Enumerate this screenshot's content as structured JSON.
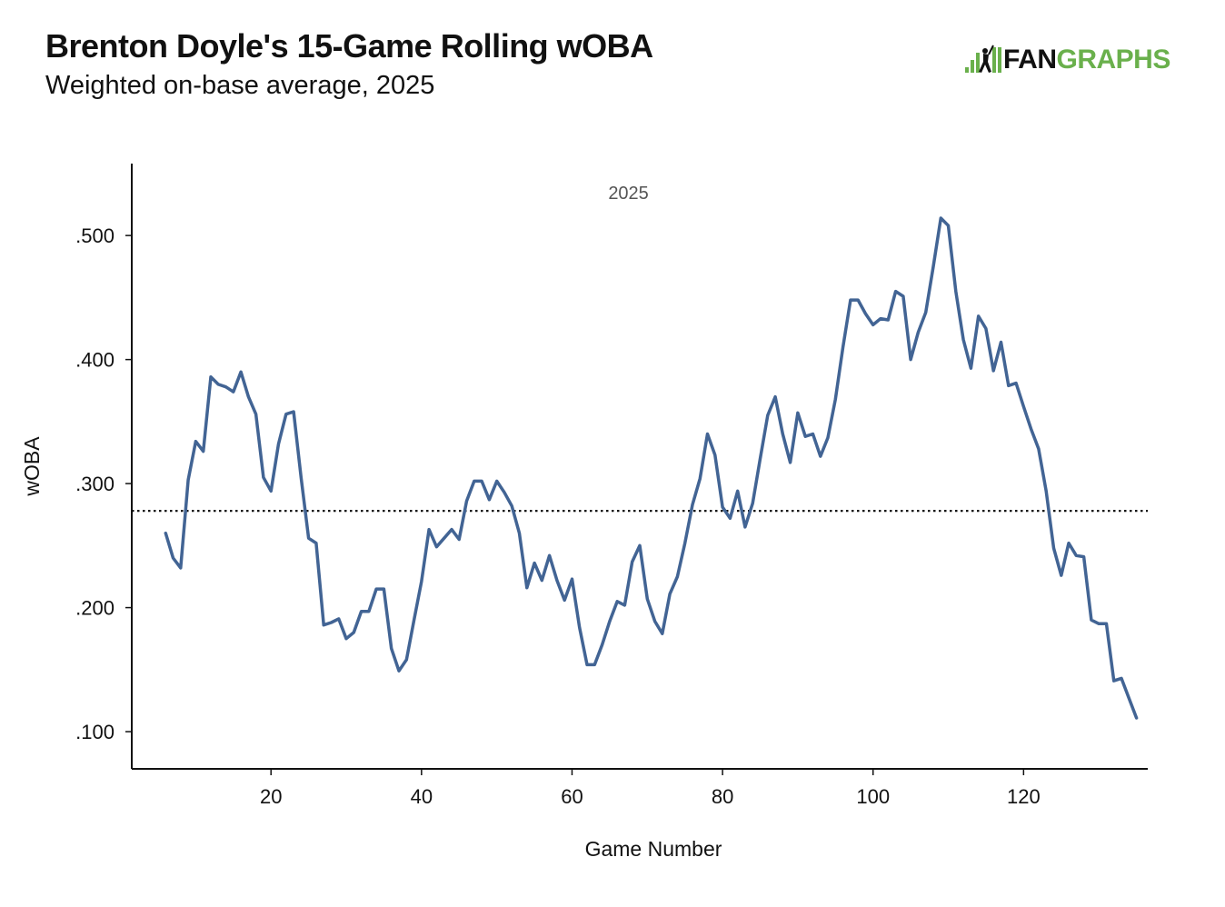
{
  "header": {
    "title": "Brenton Doyle's 15-Game Rolling wOBA",
    "subtitle": "Weighted on-base average, 2025",
    "logo_fan": "FAN",
    "logo_graphs": "GRAPHS"
  },
  "colors": {
    "line": "#426494",
    "axis": "#111111",
    "reference": "#111111",
    "logo_green": "#6ab04c"
  },
  "chart_data": {
    "type": "line",
    "title": "Brenton Doyle's 15-Game Rolling wOBA",
    "subtitle": "Weighted on-base average, 2025",
    "panel_label": "2025",
    "xlabel": "Game Number",
    "ylabel": "wOBA",
    "xlim": [
      1.5,
      136.5
    ],
    "ylim": [
      0.07,
      0.558
    ],
    "x_ticks": [
      20,
      40,
      60,
      80,
      100,
      120
    ],
    "x_tick_labels": [
      "20",
      "40",
      "60",
      "80",
      "100",
      "120"
    ],
    "y_ticks": [
      0.1,
      0.2,
      0.3,
      0.4,
      0.5
    ],
    "y_tick_labels": [
      ".100",
      ".200",
      ".300",
      ".400",
      ".500"
    ],
    "reference_line": 0.278,
    "grid": false,
    "series": [
      {
        "x": [
          6,
          7,
          8,
          9,
          10,
          11,
          12,
          13,
          14,
          15,
          16,
          17,
          18,
          19,
          20,
          21,
          22,
          23,
          24,
          25,
          26,
          27,
          28,
          29,
          30,
          31,
          32,
          33,
          34,
          35,
          36,
          37,
          38,
          39,
          40,
          41,
          42,
          43,
          44,
          45,
          46,
          47,
          48,
          49,
          50,
          51,
          52,
          53,
          54,
          55,
          56,
          57,
          58,
          59,
          60,
          61,
          62,
          63,
          64,
          65,
          66,
          67,
          68,
          69,
          70,
          71,
          72,
          73,
          74,
          75,
          76,
          77,
          78,
          79,
          80,
          81,
          82,
          83,
          84,
          85,
          86,
          87,
          88,
          89,
          90,
          91,
          92,
          93,
          94,
          95,
          96,
          97,
          98,
          99,
          100,
          101,
          102,
          103,
          104,
          105,
          106,
          107,
          108,
          109,
          110,
          111,
          112,
          113,
          114,
          115,
          116,
          117,
          118,
          119,
          120,
          121,
          122,
          123,
          124,
          125,
          126,
          127,
          128,
          129,
          130,
          131,
          132,
          133,
          134,
          135
        ],
        "values": [
          0.26,
          0.24,
          0.232,
          0.303,
          0.334,
          0.326,
          0.386,
          0.38,
          0.378,
          0.374,
          0.39,
          0.37,
          0.356,
          0.305,
          0.294,
          0.332,
          0.356,
          0.358,
          0.305,
          0.256,
          0.252,
          0.186,
          0.188,
          0.191,
          0.175,
          0.18,
          0.197,
          0.197,
          0.215,
          0.215,
          0.167,
          0.149,
          0.158,
          0.19,
          0.221,
          0.263,
          0.249,
          0.256,
          0.263,
          0.255,
          0.286,
          0.302,
          0.302,
          0.287,
          0.302,
          0.293,
          0.282,
          0.26,
          0.216,
          0.236,
          0.222,
          0.242,
          0.222,
          0.206,
          0.223,
          0.184,
          0.154,
          0.154,
          0.17,
          0.189,
          0.205,
          0.202,
          0.237,
          0.25,
          0.207,
          0.189,
          0.179,
          0.211,
          0.225,
          0.252,
          0.283,
          0.304,
          0.34,
          0.323,
          0.281,
          0.272,
          0.294,
          0.265,
          0.284,
          0.32,
          0.355,
          0.37,
          0.34,
          0.317,
          0.357,
          0.338,
          0.34,
          0.322,
          0.337,
          0.368,
          0.41,
          0.448,
          0.448,
          0.437,
          0.428,
          0.433,
          0.432,
          0.455,
          0.451,
          0.4,
          0.422,
          0.438,
          0.475,
          0.514,
          0.508,
          0.455,
          0.416,
          0.393,
          0.435,
          0.425,
          0.391,
          0.414,
          0.379,
          0.381,
          0.362,
          0.344,
          0.328,
          0.294,
          0.248,
          0.226,
          0.252,
          0.242,
          0.241,
          0.19,
          0.187,
          0.187,
          0.141,
          0.143,
          0.127,
          0.111
        ]
      }
    ]
  }
}
